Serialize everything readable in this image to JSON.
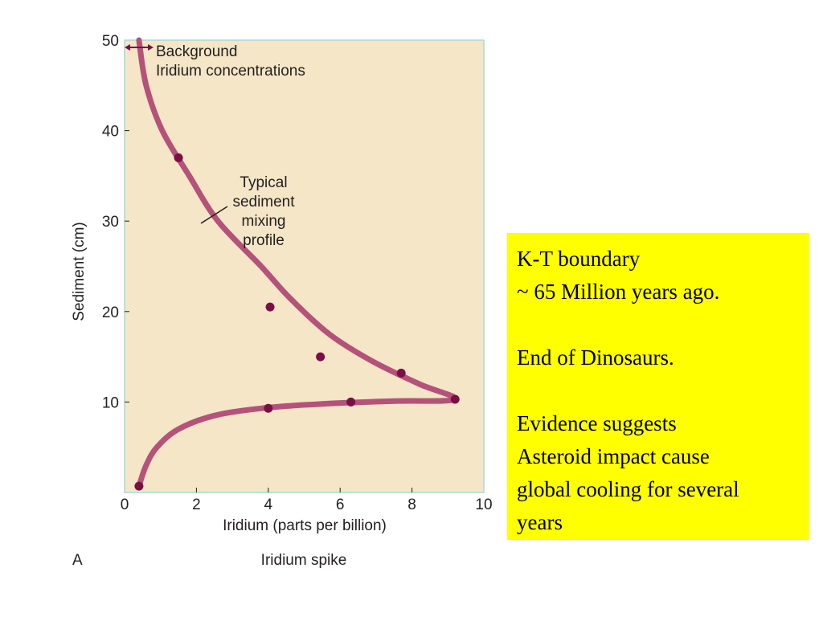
{
  "chart_data": {
    "type": "scatter",
    "xlabel": "Iridium (parts per billion)",
    "ylabel": "Sediment (cm)",
    "xlim": [
      0,
      10
    ],
    "ylim": [
      0,
      50
    ],
    "x_ticks": [
      "0",
      "2",
      "4",
      "6",
      "8",
      "10"
    ],
    "y_ticks": [
      "10",
      "20",
      "30",
      "40",
      "50"
    ],
    "series": [
      {
        "values": [
          {
            "x": 1.5,
            "y": 37
          },
          {
            "x": 4.05,
            "y": 20.5
          },
          {
            "x": 5.45,
            "y": 15
          },
          {
            "x": 7.7,
            "y": 13.2
          },
          {
            "x": 9.2,
            "y": 10.3
          },
          {
            "x": 6.3,
            "y": 10
          },
          {
            "x": 4.0,
            "y": 9.3
          },
          {
            "x": 0.4,
            "y": 0.7
          }
        ]
      }
    ],
    "curve": [
      {
        "x": 0.4,
        "y": 50
      },
      {
        "x": 0.6,
        "y": 45
      },
      {
        "x": 1.05,
        "y": 40
      },
      {
        "x": 1.8,
        "y": 35
      },
      {
        "x": 2.6,
        "y": 30
      },
      {
        "x": 3.8,
        "y": 25
      },
      {
        "x": 4.6,
        "y": 21.5
      },
      {
        "x": 5.7,
        "y": 17.5
      },
      {
        "x": 6.9,
        "y": 14.5
      },
      {
        "x": 8.2,
        "y": 12
      },
      {
        "x": 9.2,
        "y": 10.3
      },
      {
        "x": 7.5,
        "y": 10.1
      },
      {
        "x": 5.5,
        "y": 9.8
      },
      {
        "x": 3.8,
        "y": 9.3
      },
      {
        "x": 2.5,
        "y": 8.5
      },
      {
        "x": 1.5,
        "y": 7
      },
      {
        "x": 0.9,
        "y": 5
      },
      {
        "x": 0.6,
        "y": 3
      },
      {
        "x": 0.4,
        "y": 0.7
      }
    ],
    "annotations": {
      "background": [
        "Background",
        "Iridium concentrations"
      ],
      "mixing": [
        "Typical",
        "sediment",
        "mixing",
        "profile"
      ]
    },
    "panel_label": "A",
    "caption": "Iridium spike",
    "colors": {
      "curve": "#b5527a",
      "points": "#7a0f45",
      "plot_bg": "#f4e6c6",
      "frame": "#a8d8d8"
    }
  },
  "info_box": {
    "line1": "K-T boundary",
    "line2": "~ 65 Million years ago.",
    "line3": "End of Dinosaurs.",
    "line4": "Evidence suggests",
    "line5": "Asteroid impact cause",
    "line6": "global cooling for several",
    "line7": "years",
    "background": "#ffff00"
  }
}
